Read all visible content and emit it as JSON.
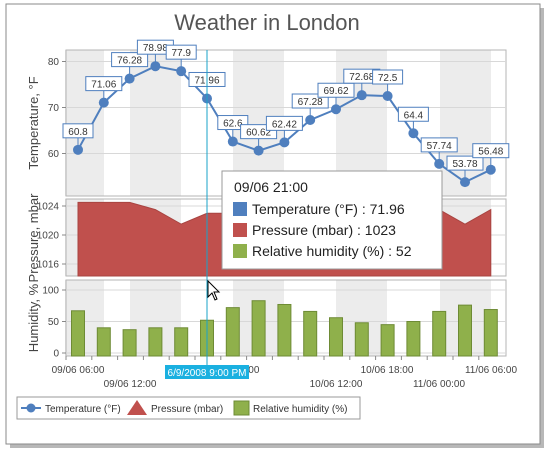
{
  "colors": {
    "temperature": "#4f7fbe",
    "pressure": "#c0504d",
    "humidity": "#8fb04b",
    "crosshair": "#18a3c9",
    "crosshair_label_bg": "#1ab0e0"
  },
  "chart_data": {
    "type": "line",
    "title": "Weather in London",
    "x_ticks_row1": [
      "09/06 06:00",
      "10/06 00:00",
      "10/06 18:00",
      "11/06 06:00"
    ],
    "x_ticks_row2": [
      "09/06 12:00",
      "10/06 12:00",
      "11/06 00:00"
    ],
    "temperature": {
      "name": "Temperature (°F)",
      "ylabel": "Temperature, °F",
      "yticks": [
        "60",
        "70",
        "80"
      ],
      "ylim": [
        56,
        82
      ],
      "values": [
        60.8,
        71.06,
        76.28,
        78.98,
        77.9,
        71.96,
        62.6,
        60.62,
        62.42,
        67.28,
        69.62,
        72.68,
        72.5,
        64.4,
        57.74,
        53.78,
        56.48
      ],
      "labels": [
        "60.8",
        "71.06",
        "76.28",
        "78.98",
        "77.9",
        "71.96",
        "62.6",
        "60.62",
        "62.42",
        "67.28",
        "69.62",
        "72.68",
        "72.5",
        "64.4",
        "57.74",
        "53.78",
        "56.48"
      ]
    },
    "pressure": {
      "name": "Pressure (mbar)",
      "ylabel": "Pressure, mbar",
      "yticks": [
        "1016",
        "1020",
        "1024"
      ],
      "ylim": [
        1012.5,
        1025.5
      ],
      "values": [
        1024.5,
        1024.5,
        1024.5,
        1023.5,
        1021.5,
        1023,
        1023,
        1023,
        1023.5,
        1023.5,
        1023.5,
        1023.5,
        1023.5,
        1023.5,
        1023.5,
        1021.5,
        1023.5
      ]
    },
    "humidity": {
      "name": "Relative humidity (%)",
      "ylabel": "Humidity, %",
      "yticks": [
        "0",
        "50",
        "100"
      ],
      "ylim": [
        0,
        107
      ],
      "values": [
        67,
        40,
        37,
        40,
        40,
        52,
        72,
        83,
        77,
        66,
        56,
        48,
        45,
        50,
        66,
        76,
        69
      ]
    },
    "grid": true,
    "legend_position": "bottom-left",
    "tooltip": {
      "header": "09/06 21:00",
      "rows": [
        {
          "label": "Temperature (°F) : 71.96",
          "series": "temperature"
        },
        {
          "label": "Pressure (mbar) : 1023",
          "series": "pressure"
        },
        {
          "label": "Relative humidity (%) : 52",
          "series": "humidity"
        }
      ]
    },
    "crosshair_label": "6/9/2008 9:00 PM"
  }
}
